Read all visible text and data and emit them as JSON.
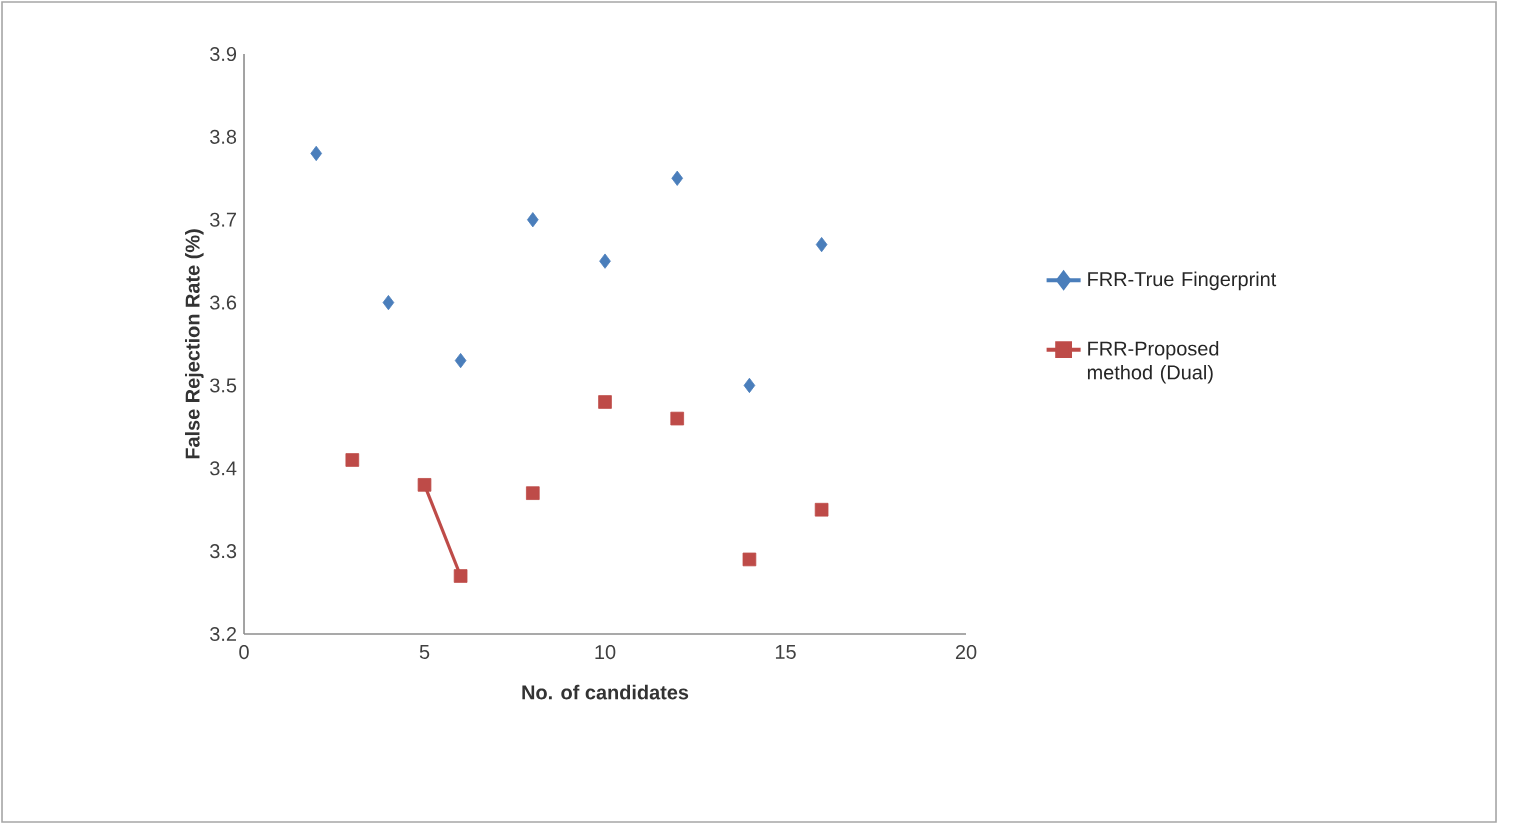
{
  "chart_data": {
    "type": "scatter",
    "xlabel": "No. of candidates",
    "ylabel": "False Rejection Rate (%)",
    "xlim": [
      0,
      20
    ],
    "xticks": [
      0,
      5,
      10,
      15,
      20
    ],
    "ylim": [
      3.2,
      3.9
    ],
    "yticks": [
      3.2,
      3.3,
      3.4,
      3.5,
      3.6,
      3.7,
      3.8,
      3.9
    ],
    "grid": false,
    "legend": "right",
    "series": [
      {
        "name": "FRR-True Fingerprint",
        "color": "#4a7ebb",
        "marker": "diamond",
        "x": [
          2,
          4,
          6,
          8,
          10,
          12,
          14,
          16
        ],
        "values": [
          3.78,
          3.6,
          3.53,
          3.7,
          3.65,
          3.75,
          3.5,
          3.67
        ]
      },
      {
        "name": "FRR-Proposed method (Dual)",
        "color": "#be4b48",
        "marker": "square",
        "x": [
          3,
          5,
          6,
          8,
          10,
          12,
          14,
          16
        ],
        "values": [
          3.41,
          3.38,
          3.27,
          3.37,
          3.48,
          3.46,
          3.29,
          3.35
        ]
      },
      {
        "type": "line",
        "color": "#be4b48",
        "marker": "none",
        "x": [
          5,
          6
        ],
        "values": [
          3.38,
          3.27
        ]
      }
    ]
  }
}
